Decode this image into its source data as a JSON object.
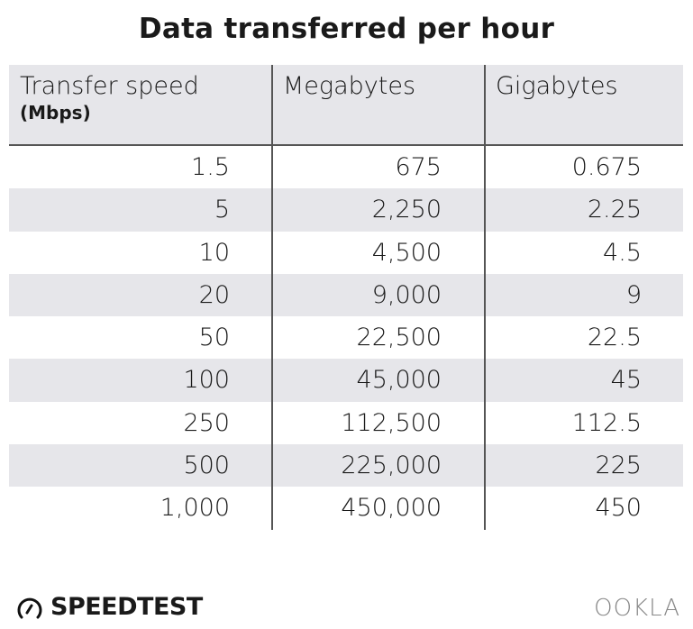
{
  "chart_data": {
    "type": "table",
    "title": "Data transferred per hour",
    "columns": [
      {
        "label": "Transfer speed",
        "sublabel": "(Mbps)"
      },
      {
        "label": "Megabytes"
      },
      {
        "label": "Gigabytes"
      }
    ],
    "rows": [
      [
        "1.5",
        "675",
        "0.675"
      ],
      [
        "5",
        "2,250",
        "2.25"
      ],
      [
        "10",
        "4,500",
        "4.5"
      ],
      [
        "20",
        "9,000",
        "9"
      ],
      [
        "50",
        "22,500",
        "22.5"
      ],
      [
        "100",
        "45,000",
        "45"
      ],
      [
        "250",
        "112,500",
        "112.5"
      ],
      [
        "500",
        "225,000",
        "225"
      ],
      [
        "1,000",
        "450,000",
        "450"
      ]
    ],
    "colors": {
      "header_bg": "#e6e6ea",
      "stripe_bg": "#e6e6ea",
      "rule": "#555555"
    }
  },
  "branding": {
    "speedtest": "SPEEDTEST",
    "ookla": "OOKLA",
    "speedtest_icon": "speedometer-icon"
  }
}
